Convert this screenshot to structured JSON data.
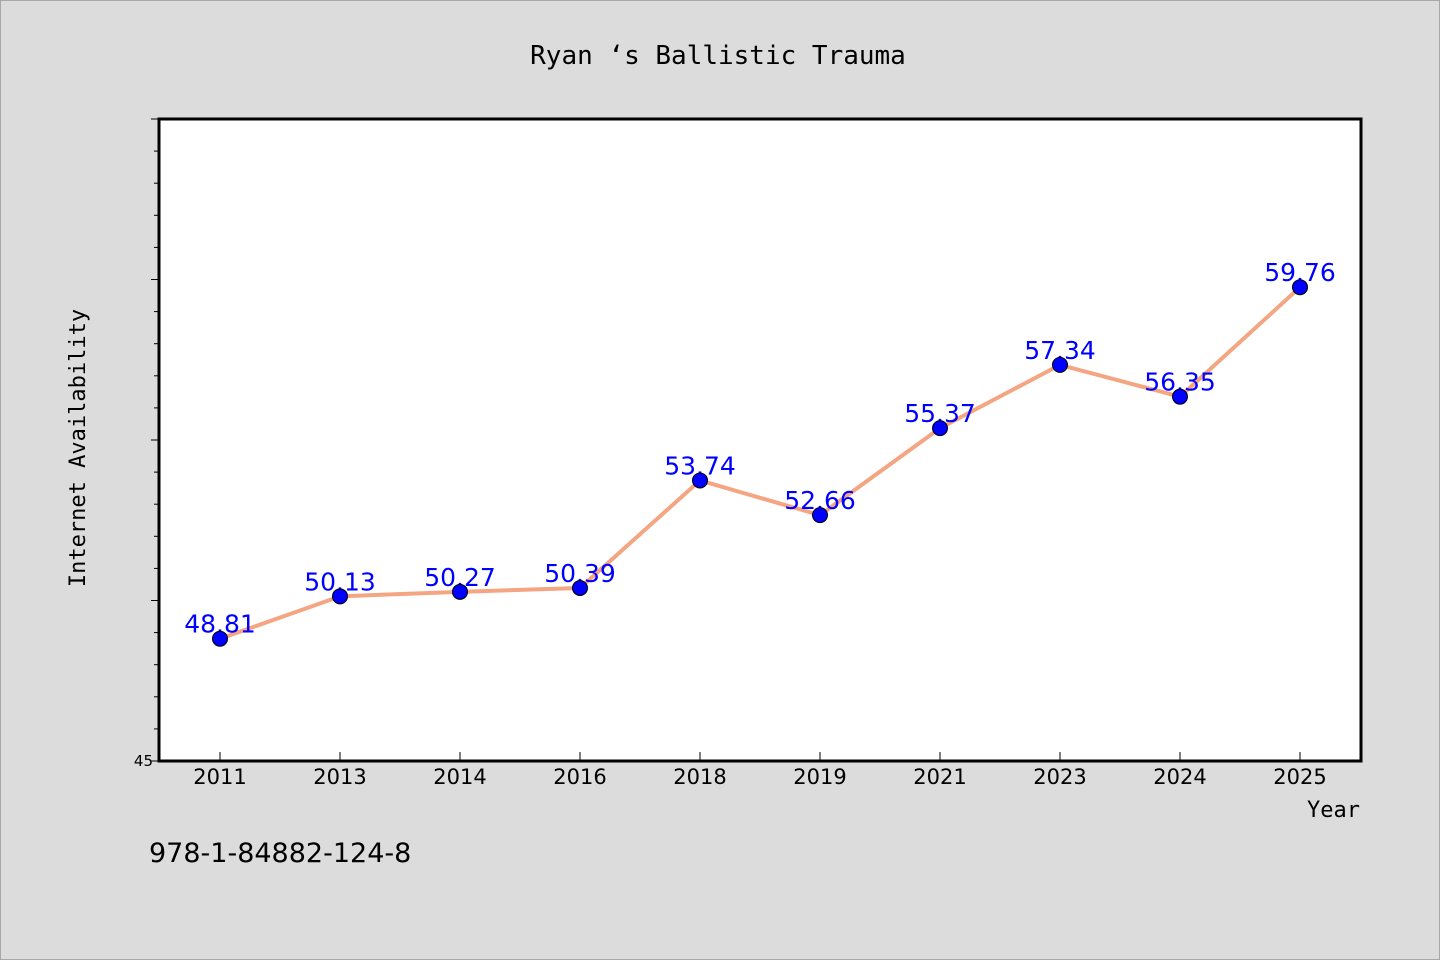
{
  "chart_data": {
    "type": "line",
    "title": "Ryan ‘s Ballistic Trauma",
    "xlabel": "Year",
    "ylabel": "Internet Availability",
    "categories": [
      "2011",
      "2013",
      "2014",
      "2016",
      "2018",
      "2019",
      "2021",
      "2023",
      "2024",
      "2025"
    ],
    "series": [
      {
        "values": [
          48.81,
          50.13,
          50.27,
          50.39,
          53.74,
          52.66,
          55.37,
          57.34,
          56.35,
          59.76
        ],
        "labels": [
          "48.81",
          "50.13",
          "50.27",
          "50.39",
          "53.74",
          "52.66",
          "55.37",
          "57.34",
          "56.35",
          "59.76"
        ]
      }
    ],
    "ylim": [
      45,
      65
    ],
    "ytick_labels": [
      "45"
    ],
    "grid": false,
    "line_color": "#f4a582",
    "marker_color": "#0000ff",
    "label_color": "#0000ff"
  },
  "footer": {
    "isbn": "978-1-84882-124-8"
  }
}
